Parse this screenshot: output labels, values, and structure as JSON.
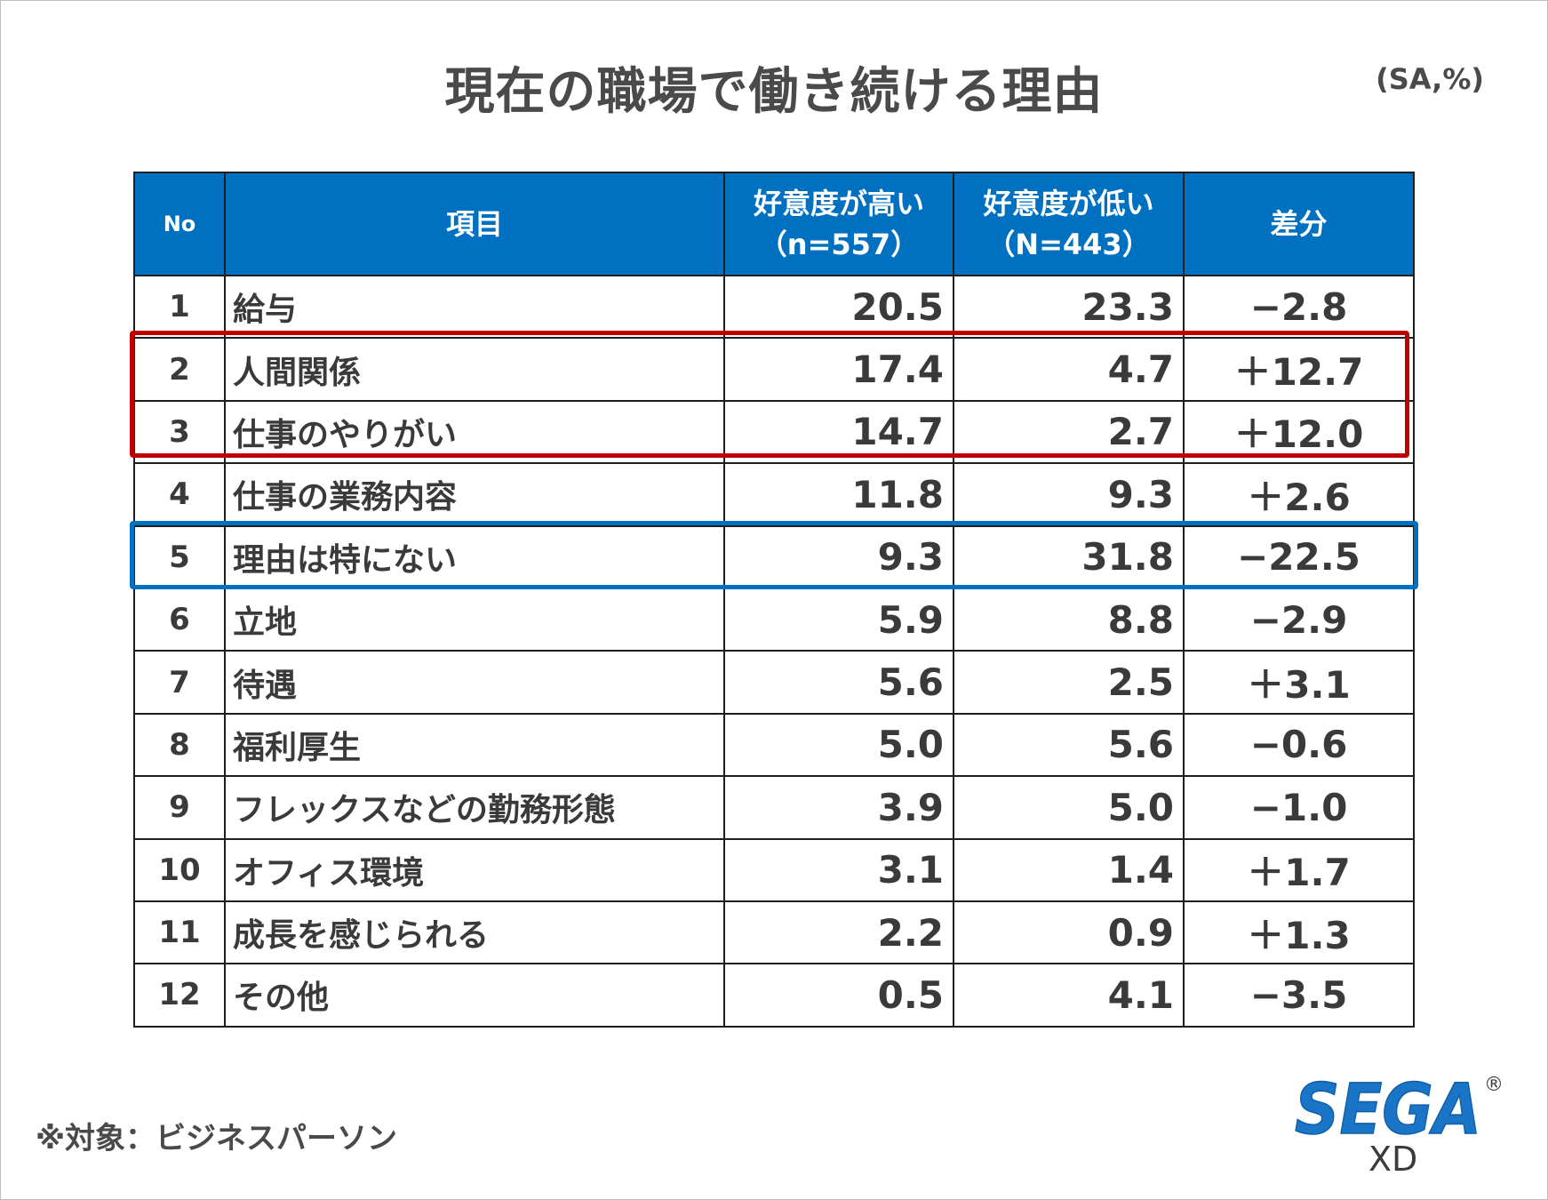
{
  "title": "現在の職場で働き続ける理由",
  "unit_label": "(SA,%)",
  "table": {
    "headers": {
      "no": "No",
      "item": "項目",
      "high_line1": "好意度が高い",
      "high_line2": "（n=557）",
      "low_line1": "好意度が低い",
      "low_line2": "（N=443）",
      "diff": "差分"
    },
    "rows": [
      {
        "no": "1",
        "item": "給与",
        "high": "20.5",
        "low": "23.3",
        "diff": "−2.8"
      },
      {
        "no": "2",
        "item": "人間関係",
        "high": "17.4",
        "low": "4.7",
        "diff": "＋12.7"
      },
      {
        "no": "3",
        "item": "仕事のやりがい",
        "high": "14.7",
        "low": "2.7",
        "diff": "＋12.0"
      },
      {
        "no": "4",
        "item": "仕事の業務内容",
        "high": "11.8",
        "low": "9.3",
        "diff": "＋2.6"
      },
      {
        "no": "5",
        "item": "理由は特にない",
        "high": "9.3",
        "low": "31.8",
        "diff": "−22.5"
      },
      {
        "no": "6",
        "item": "立地",
        "high": "5.9",
        "low": "8.8",
        "diff": "−2.9"
      },
      {
        "no": "7",
        "item": "待遇",
        "high": "5.6",
        "low": "2.5",
        "diff": "＋3.1"
      },
      {
        "no": "8",
        "item": "福利厚生",
        "high": "5.0",
        "low": "5.6",
        "diff": "−0.6"
      },
      {
        "no": "9",
        "item": "フレックスなどの勤務形態",
        "high": "3.9",
        "low": "5.0",
        "diff": "−1.0"
      },
      {
        "no": "10",
        "item": "オフィス環境",
        "high": "3.1",
        "low": "1.4",
        "diff": "＋1.7"
      },
      {
        "no": "11",
        "item": "成長を感じられる",
        "high": "2.2",
        "low": "0.9",
        "diff": "＋1.3"
      },
      {
        "no": "12",
        "item": "その他",
        "high": "0.5",
        "low": "4.1",
        "diff": "−3.5"
      }
    ]
  },
  "chart_data": {
    "type": "table",
    "title": "現在の職場で働き続ける理由",
    "unit": "(SA,%)",
    "columns": [
      "No",
      "項目",
      "好意度が高い（n=557）",
      "好意度が低い（N=443）",
      "差分"
    ],
    "rows": [
      [
        1,
        "給与",
        20.5,
        23.3,
        -2.8
      ],
      [
        2,
        "人間関係",
        17.4,
        4.7,
        12.7
      ],
      [
        3,
        "仕事のやりがい",
        14.7,
        2.7,
        12.0
      ],
      [
        4,
        "仕事の業務内容",
        11.8,
        9.3,
        2.6
      ],
      [
        5,
        "理由は特にない",
        9.3,
        31.8,
        -22.5
      ],
      [
        6,
        "立地",
        5.9,
        8.8,
        -2.9
      ],
      [
        7,
        "待遇",
        5.6,
        2.5,
        3.1
      ],
      [
        8,
        "福利厚生",
        5.0,
        5.6,
        -0.6
      ],
      [
        9,
        "フレックスなどの勤務形態",
        3.9,
        5.0,
        -1.0
      ],
      [
        10,
        "オフィス環境",
        3.1,
        1.4,
        1.7
      ],
      [
        11,
        "成長を感じられる",
        2.2,
        0.9,
        1.3
      ],
      [
        12,
        "その他",
        0.5,
        4.1,
        -3.5
      ]
    ],
    "highlights": [
      {
        "rows": [
          2,
          3
        ],
        "color": "#c00000"
      },
      {
        "rows": [
          5
        ],
        "color": "#0070c0"
      }
    ]
  },
  "colors": {
    "header_bg": "#0070c0",
    "highlight_red": "#c00000",
    "highlight_blue": "#0070c0",
    "logo_blue": "#1a75c7"
  },
  "note": "※対象：ビジネスパーソン",
  "logo": {
    "brand": "SEGA",
    "sub": "XD",
    "registered": "®"
  }
}
